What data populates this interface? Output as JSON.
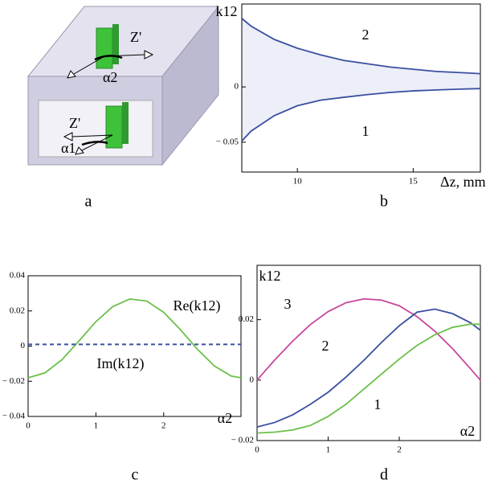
{
  "panel_a": {
    "labels": [
      "Z'",
      "α2",
      "Z'",
      "α1"
    ]
  },
  "panel_labels": [
    "a",
    "b",
    "c",
    "d"
  ],
  "chart_data": [
    {
      "type": "line",
      "ylabel": "k12",
      "xlabel": "Δz, mm",
      "shade_between": true,
      "x": [
        7.6,
        8,
        9,
        10,
        11,
        12,
        13,
        14,
        15,
        16,
        17,
        17.9
      ],
      "series": [
        {
          "name": "2",
          "color": "#3a4fa0",
          "values": [
            0.062,
            0.055,
            0.043,
            0.035,
            0.029,
            0.024,
            0.021,
            0.018,
            0.016,
            0.014,
            0.013,
            0.012
          ]
        },
        {
          "name": "1",
          "color": "#3a4fa0",
          "values": [
            -0.049,
            -0.04,
            -0.026,
            -0.017,
            -0.012,
            -0.0094,
            -0.007,
            -0.005,
            -0.0036,
            -0.0027,
            -0.002,
            -0.0015
          ]
        }
      ],
      "xlim": [
        7.6,
        17.9
      ],
      "ylim": [
        -0.077,
        0.075
      ],
      "xticks": [
        10,
        15
      ],
      "yticks": [
        {
          "value": -0.05,
          "label": "− 0.05"
        },
        0
      ]
    },
    {
      "type": "line",
      "xlabel": "α2",
      "x": [
        0,
        0.25,
        0.5,
        0.75,
        1,
        1.25,
        1.5,
        1.75,
        2,
        2.25,
        2.5,
        2.75,
        3,
        3.14
      ],
      "series": [
        {
          "name": "Re(k12)",
          "color": "#6cc04a",
          "values": [
            -0.018,
            -0.0152,
            -0.0077,
            0.0029,
            0.0139,
            0.0225,
            0.0268,
            0.0256,
            0.0192,
            0.0092,
            -0.0019,
            -0.0114,
            -0.0171,
            -0.018
          ]
        },
        {
          "name": "Im(k12)",
          "color": "#3a4fa0",
          "dashed": true,
          "values": [
            0.001,
            0.001,
            0.001,
            0.001,
            0.001,
            0.001,
            0.001,
            0.001,
            0.001,
            0.001,
            0.001,
            0.001,
            0.001,
            0.001
          ]
        }
      ],
      "xlim": [
        0,
        3.14
      ],
      "ylim": [
        -0.04,
        0.04
      ],
      "xticks": [
        0,
        1,
        2
      ],
      "yticks": [
        {
          "value": -0.04,
          "label": "− 0.04"
        },
        {
          "value": -0.02,
          "label": "− 0.02"
        },
        0,
        0.02,
        0.04
      ]
    },
    {
      "type": "line",
      "ylabel": "k12",
      "xlabel": "α2",
      "x": [
        0,
        0.25,
        0.5,
        0.75,
        1,
        1.25,
        1.5,
        1.75,
        2,
        2.25,
        2.5,
        2.75,
        3,
        3.14
      ],
      "series": [
        {
          "name": "3",
          "color": "#c9479e",
          "values": [
            0,
            0.0067,
            0.0129,
            0.0184,
            0.0227,
            0.0256,
            0.0269,
            0.0265,
            0.0246,
            0.021,
            0.0162,
            0.0104,
            0.0038,
            0
          ]
        },
        {
          "name": "2",
          "color": "#3a4fa0",
          "values": [
            -0.0155,
            -0.014,
            -0.0115,
            -0.008,
            -0.004,
            0.001,
            0.0065,
            0.0125,
            0.018,
            0.0225,
            0.0235,
            0.022,
            0.019,
            0.0165
          ]
        },
        {
          "name": "1",
          "color": "#6cc04a",
          "values": [
            -0.0175,
            -0.0172,
            -0.0165,
            -0.015,
            -0.012,
            -0.008,
            -0.003,
            0.002,
            0.007,
            0.0115,
            0.015,
            0.0175,
            0.0185,
            0.0185
          ]
        }
      ],
      "xlim": [
        0,
        3.14
      ],
      "ylim": [
        -0.02,
        0.038
      ],
      "xticks": [
        0,
        1,
        2
      ],
      "yticks": [
        {
          "value": -0.02,
          "label": "− 0.02"
        },
        0,
        0.02
      ]
    }
  ]
}
